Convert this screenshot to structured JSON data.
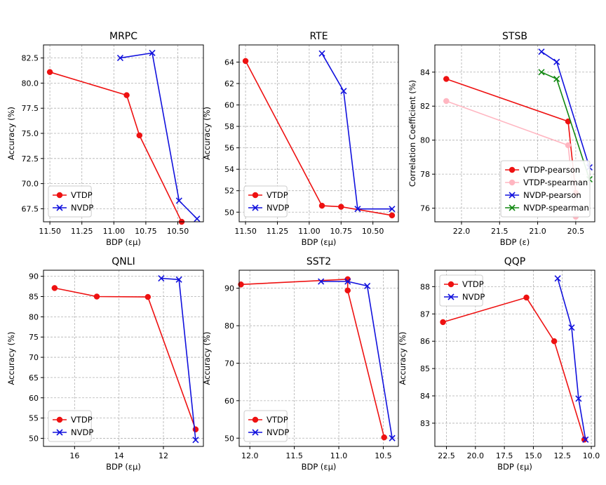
{
  "chart_data": [
    {
      "type": "line",
      "title": "MRPC",
      "xlabel": "BDP (εμ)",
      "ylabel": "Accuracy (%)",
      "xlim": [
        11.55,
        10.3
      ],
      "ylim": [
        66.2,
        83.8
      ],
      "xticks": [
        11.5,
        11.25,
        11.0,
        10.75,
        10.5
      ],
      "xticklabels": [
        "11.50",
        "11.25",
        "11.00",
        "10.75",
        "10.50"
      ],
      "yticks": [
        67.5,
        70.0,
        72.5,
        75.0,
        77.5,
        80.0,
        82.5
      ],
      "yticklabels": [
        "67.5",
        "70.0",
        "72.5",
        "75.0",
        "77.5",
        "80.0",
        "82.5"
      ],
      "legend": "lower-left",
      "series": [
        {
          "name": "VTDP",
          "color": "#ee1111",
          "marker": "o",
          "x": [
            11.5,
            10.9,
            10.8,
            10.47
          ],
          "y": [
            81.1,
            78.8,
            74.8,
            66.2
          ]
        },
        {
          "name": "NVDP",
          "color": "#1111dd",
          "marker": "x",
          "x": [
            10.95,
            10.7,
            10.49,
            10.35
          ],
          "y": [
            82.5,
            83.0,
            68.3,
            66.5
          ]
        }
      ]
    },
    {
      "type": "line",
      "title": "RTE",
      "xlabel": "BDP (εμ)",
      "ylabel": "Accuracy (%)",
      "xlim": [
        11.55,
        10.3
      ],
      "ylim": [
        49.1,
        65.6
      ],
      "xticks": [
        11.5,
        11.25,
        11.0,
        10.75,
        10.5
      ],
      "xticklabels": [
        "11.50",
        "11.25",
        "11.00",
        "10.75",
        "10.50"
      ],
      "yticks": [
        50,
        52,
        54,
        56,
        58,
        60,
        62,
        64
      ],
      "yticklabels": [
        "50",
        "52",
        "54",
        "56",
        "58",
        "60",
        "62",
        "64"
      ],
      "legend": "lower-left",
      "series": [
        {
          "name": "VTDP",
          "color": "#ee1111",
          "marker": "o",
          "x": [
            11.5,
            10.9,
            10.75,
            10.35
          ],
          "y": [
            64.1,
            50.6,
            50.5,
            49.7
          ]
        },
        {
          "name": "NVDP",
          "color": "#1111dd",
          "marker": "x",
          "x": [
            10.9,
            10.73,
            10.62,
            10.35
          ],
          "y": [
            64.8,
            61.3,
            50.3,
            50.3
          ]
        }
      ]
    },
    {
      "type": "line",
      "title": "STSB",
      "xlabel": "BDP (ε)",
      "ylabel": "Correlation Coefficient (%)",
      "xlim": [
        22.35,
        20.25
      ],
      "ylim": [
        75.2,
        85.6
      ],
      "xticks": [
        22.0,
        21.5,
        21.0,
        20.5
      ],
      "xticklabels": [
        "22.0",
        "21.5",
        "21.0",
        "20.5"
      ],
      "yticks": [
        76,
        78,
        80,
        82,
        84
      ],
      "yticklabels": [
        "76",
        "78",
        "80",
        "82",
        "84"
      ],
      "legend": "lower-right",
      "series": [
        {
          "name": "VTDP-pearson",
          "color": "#ee1111",
          "marker": "o",
          "x": [
            22.2,
            20.6,
            20.5
          ],
          "y": [
            83.6,
            81.1,
            76.9
          ]
        },
        {
          "name": "VTDP-spearman",
          "color": "#ffb6c1",
          "marker": "o",
          "x": [
            22.2,
            20.6,
            20.5
          ],
          "y": [
            82.3,
            79.7,
            75.5
          ]
        },
        {
          "name": "NVDP-pearson",
          "color": "#1111dd",
          "marker": "x",
          "x": [
            20.95,
            20.75,
            20.32
          ],
          "y": [
            85.2,
            84.6,
            78.4
          ]
        },
        {
          "name": "NVDP-spearman",
          "color": "#118811",
          "marker": "x",
          "x": [
            20.95,
            20.75,
            20.32
          ],
          "y": [
            84.0,
            83.6,
            77.7
          ]
        }
      ]
    },
    {
      "type": "line",
      "title": "QNLI",
      "xlabel": "BDP (εμ)",
      "ylabel": "Accuracy (%)",
      "xlim": [
        17.4,
        10.2
      ],
      "ylim": [
        48.0,
        91.5
      ],
      "xticks": [
        16,
        14,
        12
      ],
      "xticklabels": [
        "16",
        "14",
        "12"
      ],
      "yticks": [
        50,
        55,
        60,
        65,
        70,
        75,
        80,
        85,
        90
      ],
      "yticklabels": [
        "50",
        "55",
        "60",
        "65",
        "70",
        "75",
        "80",
        "85",
        "90"
      ],
      "legend": "lower-left",
      "series": [
        {
          "name": "VTDP",
          "color": "#ee1111",
          "marker": "o",
          "x": [
            16.9,
            15.0,
            12.7,
            10.55
          ],
          "y": [
            87.1,
            85.0,
            84.9,
            52.2
          ]
        },
        {
          "name": "NVDP",
          "color": "#1111dd",
          "marker": "x",
          "x": [
            12.1,
            11.3,
            10.55
          ],
          "y": [
            89.5,
            89.2,
            49.6
          ]
        }
      ]
    },
    {
      "type": "line",
      "title": "SST2",
      "xlabel": "BDP (εμ)",
      "ylabel": "Accuracy (%)",
      "xlim": [
        12.12,
        10.33
      ],
      "ylim": [
        47.8,
        94.8
      ],
      "xticks": [
        12.0,
        11.5,
        11.0,
        10.5
      ],
      "xticklabels": [
        "12.0",
        "11.5",
        "11.0",
        "10.5"
      ],
      "yticks": [
        50,
        60,
        70,
        80,
        90
      ],
      "yticklabels": [
        "50",
        "60",
        "70",
        "80",
        "90"
      ],
      "legend": "lower-left",
      "series": [
        {
          "name": "VTDP",
          "color": "#ee1111",
          "marker": "o",
          "x": [
            12.1,
            10.9,
            10.9,
            10.49
          ],
          "y": [
            91.0,
            92.4,
            89.4,
            50.2
          ]
        },
        {
          "name": "NVDP",
          "color": "#1111dd",
          "marker": "x",
          "x": [
            11.2,
            10.9,
            10.68,
            10.4
          ],
          "y": [
            91.8,
            91.8,
            90.6,
            50.0
          ]
        }
      ]
    },
    {
      "type": "line",
      "title": "QQP",
      "xlabel": "BDP (εμ)",
      "ylabel": "Accuracy (%)",
      "xlim": [
        23.5,
        9.7
      ],
      "ylim": [
        82.15,
        88.6
      ],
      "xticks": [
        22.5,
        20.0,
        17.5,
        15.0,
        12.5,
        10.0
      ],
      "xticklabels": [
        "22.5",
        "20.0",
        "17.5",
        "15.0",
        "12.5",
        "10.0"
      ],
      "yticks": [
        83,
        84,
        85,
        86,
        87,
        88
      ],
      "yticklabels": [
        "83",
        "84",
        "85",
        "86",
        "87",
        "88"
      ],
      "legend": "top-left",
      "series": [
        {
          "name": "VTDP",
          "color": "#ee1111",
          "marker": "o",
          "x": [
            22.8,
            15.6,
            13.2,
            10.6
          ],
          "y": [
            86.7,
            87.6,
            86.0,
            82.4
          ]
        },
        {
          "name": "NVDP",
          "color": "#1111dd",
          "marker": "x",
          "x": [
            12.9,
            11.7,
            11.1,
            10.5
          ],
          "y": [
            88.3,
            86.5,
            83.9,
            82.4
          ]
        }
      ]
    }
  ]
}
